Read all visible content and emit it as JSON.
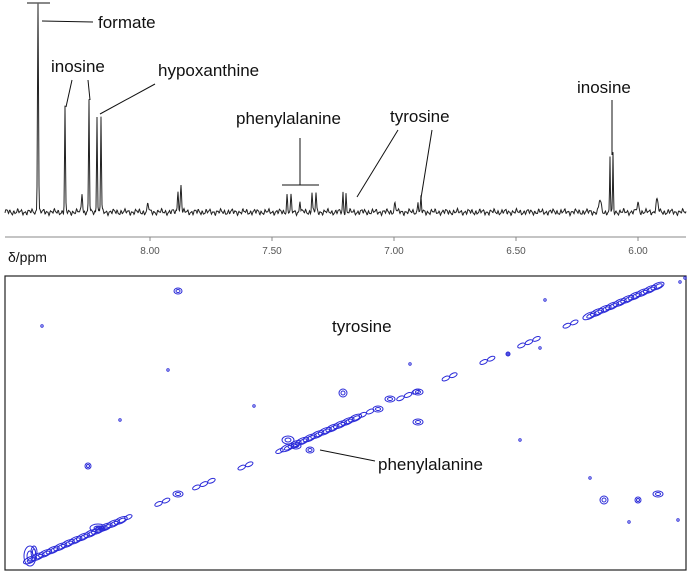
{
  "spectrum": {
    "axis_label": "δ/ppm",
    "ticks": [
      "8.00",
      "7.50",
      "7.00",
      "6.50",
      "6.00"
    ],
    "annotations": [
      "formate",
      "inosine",
      "hypoxanthine",
      "phenylalanine",
      "tyrosine",
      "inosine"
    ]
  },
  "map": {
    "annotations": [
      "tyrosine",
      "phenylalanine"
    ]
  }
}
